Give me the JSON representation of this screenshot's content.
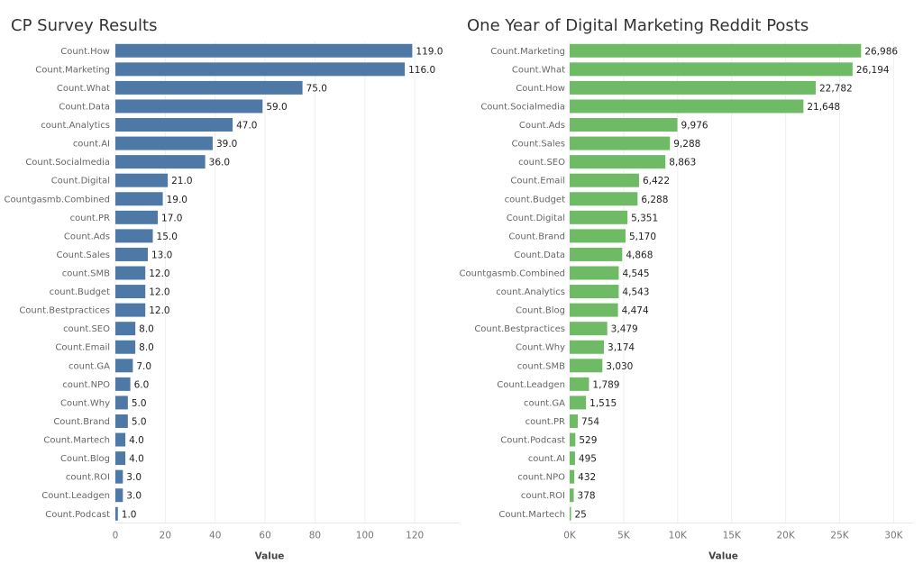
{
  "chart_data": [
    {
      "type": "bar",
      "orientation": "horizontal",
      "title": "CP Survey Results",
      "xlabel": "Value",
      "ylabel": "",
      "color": "#4e79a7",
      "xlim": [
        0,
        138
      ],
      "ticks": [
        0,
        20,
        40,
        60,
        80,
        100,
        120
      ],
      "tick_labels": [
        "0",
        "20",
        "40",
        "60",
        "80",
        "100",
        "120"
      ],
      "grid": true,
      "categories": [
        "Count.How",
        "Count.Marketing",
        "Count.What",
        "Count.Data",
        "count.Analytics",
        "count.AI",
        "Count.Socialmedia",
        "Count.Digital",
        "Countgasmb.Combined",
        "count.PR",
        "Count.Ads",
        "Count.Sales",
        "count.SMB",
        "count.Budget",
        "Count.Bestpractices",
        "count.SEO",
        "Count.Email",
        "count.GA",
        "count.NPO",
        "Count.Why",
        "Count.Brand",
        "Count.Martech",
        "Count.Blog",
        "count.ROI",
        "Count.Leadgen",
        "Count.Podcast"
      ],
      "values": [
        119,
        116,
        75,
        59,
        47,
        39,
        36,
        21,
        19,
        17,
        15,
        13,
        12,
        12,
        12,
        8,
        8,
        7,
        6,
        5,
        5,
        4,
        4,
        3,
        3,
        1
      ],
      "value_labels": [
        "119.0",
        "116.0",
        "75.0",
        "59.0",
        "47.0",
        "39.0",
        "36.0",
        "21.0",
        "19.0",
        "17.0",
        "15.0",
        "13.0",
        "12.0",
        "12.0",
        "12.0",
        "8.0",
        "8.0",
        "7.0",
        "6.0",
        "5.0",
        "5.0",
        "4.0",
        "4.0",
        "3.0",
        "3.0",
        "1.0"
      ]
    },
    {
      "type": "bar",
      "orientation": "horizontal",
      "title": "One Year of Digital Marketing Reddit Posts",
      "xlabel": "Value",
      "ylabel": "",
      "color": "#6fba64",
      "xlim": [
        0,
        31800
      ],
      "ticks": [
        0,
        5000,
        10000,
        15000,
        20000,
        25000,
        30000
      ],
      "tick_labels": [
        "0K",
        "5K",
        "10K",
        "15K",
        "20K",
        "25K",
        "30K"
      ],
      "grid": true,
      "categories": [
        "Count.Marketing",
        "Count.What",
        "Count.How",
        "Count.Socialmedia",
        "Count.Ads",
        "Count.Sales",
        "count.SEO",
        "Count.Email",
        "count.Budget",
        "Count.Digital",
        "Count.Brand",
        "Count.Data",
        "Countgasmb.Combined",
        "count.Analytics",
        "Count.Blog",
        "Count.Bestpractices",
        "Count.Why",
        "count.SMB",
        "Count.Leadgen",
        "count.GA",
        "count.PR",
        "Count.Podcast",
        "count.AI",
        "count.NPO",
        "count.ROI",
        "Count.Martech"
      ],
      "values": [
        26986,
        26194,
        22782,
        21648,
        9976,
        9288,
        8863,
        6422,
        6288,
        5351,
        5170,
        4868,
        4545,
        4543,
        4474,
        3479,
        3174,
        3030,
        1789,
        1515,
        754,
        529,
        495,
        432,
        378,
        25
      ],
      "value_labels": [
        "26,986",
        "26,194",
        "22,782",
        "21,648",
        "9,976",
        "9,288",
        "8,863",
        "6,422",
        "6,288",
        "5,351",
        "5,170",
        "4,868",
        "4,545",
        "4,543",
        "4,474",
        "3,479",
        "3,174",
        "3,030",
        "1,789",
        "1,515",
        "754",
        "529",
        "495",
        "432",
        "378",
        "25"
      ]
    }
  ]
}
